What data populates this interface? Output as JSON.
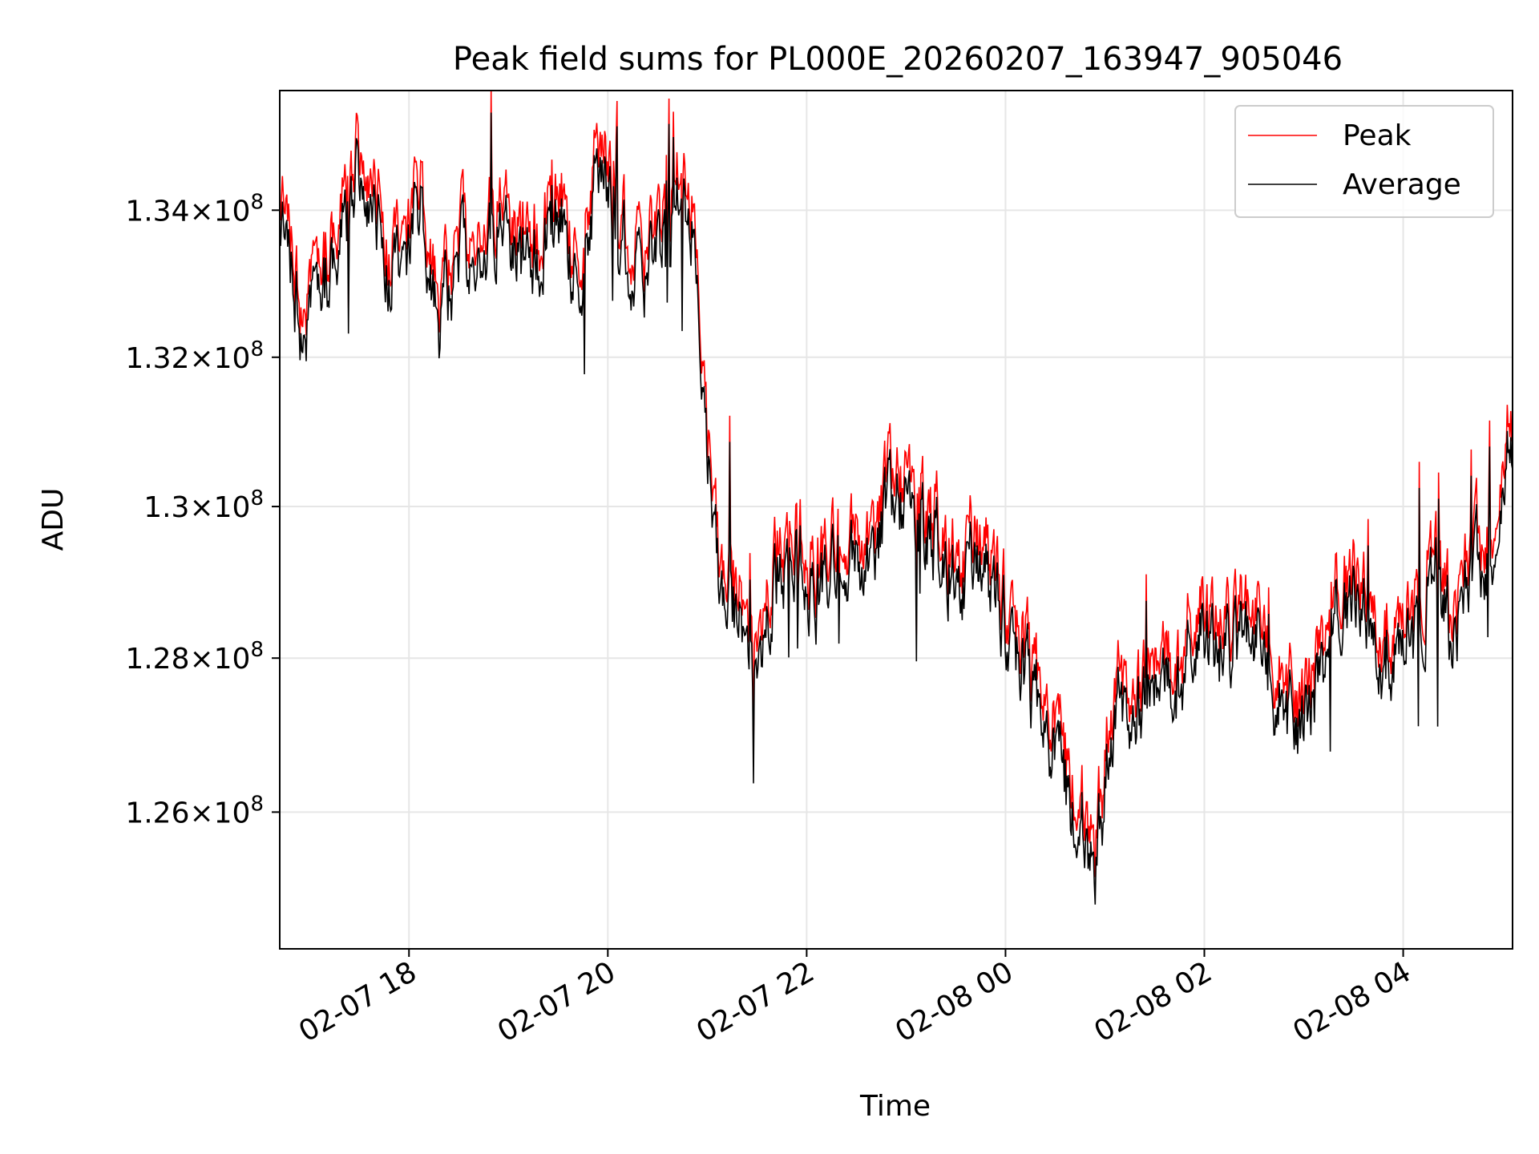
{
  "chart_data": {
    "type": "line",
    "title": "Peak field sums for PL000E_20260207_163947_905046",
    "xlabel": "Time",
    "ylabel": "ADU",
    "x_unit": "hours since 2026-02-07 00:00",
    "xlim": [
      16.7,
      29.1
    ],
    "ylim": [
      124250000,
      135650000
    ],
    "y_scale": "log",
    "grid": true,
    "legend_position": "top-right",
    "x_ticks": [
      {
        "value": 18,
        "label": "02-07 18"
      },
      {
        "value": 20,
        "label": "02-07 20"
      },
      {
        "value": 22,
        "label": "02-07 22"
      },
      {
        "value": 24,
        "label": "02-08 00"
      },
      {
        "value": 26,
        "label": "02-08 02"
      },
      {
        "value": 28,
        "label": "02-08 04"
      }
    ],
    "y_ticks": [
      {
        "value": 126000000,
        "mantissa": "1.26",
        "exponent": "8"
      },
      {
        "value": 128000000,
        "mantissa": "1.28",
        "exponent": "8"
      },
      {
        "value": 130000000,
        "mantissa": "1.3",
        "exponent": "8"
      },
      {
        "value": 132000000,
        "mantissa": "1.32",
        "exponent": "8"
      },
      {
        "value": 134000000,
        "mantissa": "1.34",
        "exponent": "8"
      }
    ],
    "x": [
      16.7,
      16.9,
      17.1,
      17.3,
      17.5,
      17.7,
      17.9,
      18.1,
      18.3,
      18.5,
      18.7,
      18.9,
      19.1,
      19.3,
      19.5,
      19.7,
      19.9,
      20.1,
      20.3,
      20.5,
      20.7,
      20.9,
      20.96,
      21.05,
      21.15,
      21.3,
      21.5,
      21.7,
      21.9,
      22.1,
      22.3,
      22.5,
      22.7,
      22.9,
      23.1,
      23.3,
      23.5,
      23.7,
      23.9,
      24.1,
      24.3,
      24.5,
      24.7,
      24.9,
      25.1,
      25.3,
      25.5,
      25.7,
      25.9,
      26.1,
      26.3,
      26.5,
      26.7,
      26.9,
      27.1,
      27.3,
      27.5,
      27.7,
      27.9,
      28.1,
      28.3,
      28.5,
      28.7,
      28.9,
      29.1
    ],
    "series": [
      {
        "name": "Peak",
        "color": "#ff0000",
        "values": [
          134300000,
          132600000,
          133100000,
          133700000,
          134800000,
          133800000,
          133200000,
          134400000,
          132600000,
          133600000,
          133700000,
          134100000,
          133400000,
          133600000,
          134300000,
          133000000,
          134900000,
          133900000,
          133300000,
          133400000,
          134400000,
          133800000,
          131200000,
          130400000,
          128900000,
          128800000,
          127900000,
          129300000,
          129700000,
          129000000,
          129600000,
          129300000,
          129800000,
          130300000,
          129800000,
          129700000,
          129100000,
          129600000,
          129000000,
          128300000,
          127700000,
          127000000,
          126200000,
          125500000,
          127600000,
          127200000,
          127900000,
          127700000,
          128600000,
          128300000,
          128400000,
          128500000,
          127800000,
          127300000,
          127600000,
          128800000,
          129000000,
          128300000,
          128000000,
          128500000,
          129300000,
          128400000,
          129300000,
          129800000,
          131100000
        ]
      },
      {
        "name": "Average",
        "color": "#000000",
        "values": [
          134100000,
          132400000,
          132900000,
          133500000,
          134600000,
          133600000,
          133000000,
          134200000,
          132400000,
          133400000,
          133500000,
          133900000,
          133200000,
          133400000,
          134100000,
          132800000,
          134700000,
          133700000,
          133100000,
          133200000,
          134200000,
          133600000,
          131000000,
          130200000,
          128700000,
          128600000,
          127700000,
          129100000,
          129500000,
          128800000,
          129400000,
          129100000,
          129600000,
          130100000,
          129600000,
          129500000,
          128900000,
          129400000,
          128800000,
          128100000,
          127500000,
          126800000,
          126000000,
          125300000,
          127400000,
          127000000,
          127700000,
          127500000,
          128400000,
          128100000,
          128200000,
          128300000,
          127600000,
          127100000,
          127400000,
          128600000,
          128800000,
          128100000,
          127800000,
          128300000,
          129100000,
          128200000,
          129100000,
          129600000,
          130900000
        ]
      }
    ]
  }
}
